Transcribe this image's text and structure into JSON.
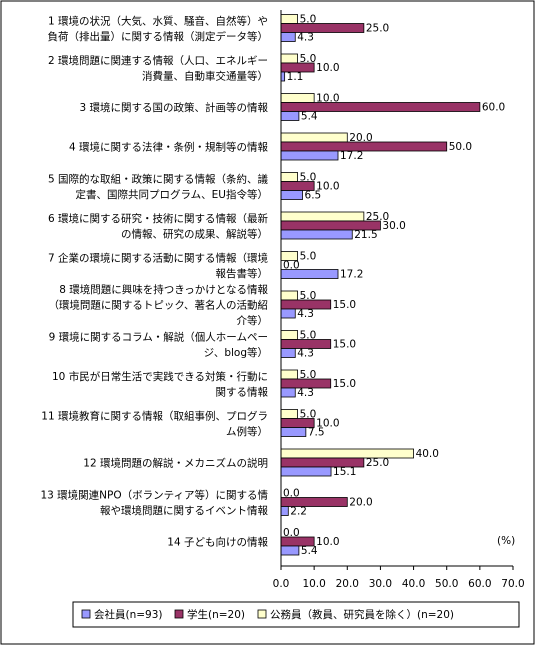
{
  "chart_data": {
    "type": "bar",
    "orientation": "horizontal",
    "unit_label": "(%)",
    "xlim": [
      0,
      70
    ],
    "xticks": [
      "0.0",
      "10.0",
      "20.0",
      "30.0",
      "40.0",
      "50.0",
      "60.0",
      "70.0"
    ],
    "grid": false,
    "legend_position": "bottom",
    "categories": [
      [
        "1 環境の状況（大気、水質、騒音、自然等）や",
        "負荷（排出量）に関する情報（測定データ等）"
      ],
      [
        "2 環境問題に関連する情報（人口、エネルギー",
        "消費量、自動車交通量等）"
      ],
      [
        "3 環境に関する国の政策、計画等の情報"
      ],
      [
        "4 環境に関する法律・条例・規制等の情報"
      ],
      [
        "5 国際的な取組・政策に関する情報（条約、議",
        "定書、国際共同プログラム、EU指令等）"
      ],
      [
        "6 環境に関する研究・技術に関する情報（最新",
        "の情報、研究の成果、解説等）"
      ],
      [
        "7 企業の環境に関する活動に関する情報（環境",
        "報告書等）"
      ],
      [
        "8 環境問題に興味を持つきっかけとなる情報",
        "（環境問題に関するトピック、著名人の活動紹",
        "介等）"
      ],
      [
        "9 環境に関するコラム・解説（個人ホームペー",
        "ジ、blog等）"
      ],
      [
        "10 市民が日常生活で実践できる対策・行動に",
        "関する情報"
      ],
      [
        "11 環境教育に関する情報（取組事例、プログラ",
        "ム例等）"
      ],
      [
        "12 環境問題の解説・メカニズムの説明"
      ],
      [
        "13 環境関連NPO（ボランティア等）に関する情",
        "報や環境問題に関するイベント情報"
      ],
      [
        "14 子ども向けの情報"
      ]
    ],
    "series": [
      {
        "name": "公務員（教員、研究員を除く）(n=20)",
        "color": "#ffffcc",
        "values": [
          5.0,
          5.0,
          10.0,
          20.0,
          5.0,
          25.0,
          5.0,
          5.0,
          5.0,
          5.0,
          5.0,
          40.0,
          0.0,
          0.0
        ],
        "labels": [
          "5.0",
          "5.0",
          "10.0",
          "20.0",
          "5.0",
          "25.0",
          "5.0",
          "5.0",
          "5.0",
          "5.0",
          "5.0",
          "40.0",
          "0.0",
          "0.0"
        ]
      },
      {
        "name": "学生(n=20)",
        "color": "#993366",
        "values": [
          25.0,
          10.0,
          60.0,
          50.0,
          10.0,
          30.0,
          0.0,
          15.0,
          15.0,
          15.0,
          10.0,
          25.0,
          20.0,
          10.0
        ],
        "labels": [
          "25.0",
          "10.0",
          "60.0",
          "50.0",
          "10.0",
          "30.0",
          "0.0",
          "15.0",
          "15.0",
          "15.0",
          "10.0",
          "25.0",
          "20.0",
          "10.0"
        ]
      },
      {
        "name": "会社員(n=93)",
        "color": "#9999ff",
        "values": [
          4.3,
          1.1,
          5.4,
          17.2,
          6.5,
          21.5,
          17.2,
          4.3,
          4.3,
          4.3,
          7.5,
          15.1,
          2.2,
          5.4
        ],
        "labels": [
          "4.3",
          "1.1",
          "5.4",
          "17.2",
          "6.5",
          "21.5",
          "17.2",
          "4.3",
          "4.3",
          "4.3",
          "7.5",
          "15.1",
          "2.2",
          "5.4"
        ]
      }
    ],
    "legend_order": [
      "会社員(n=93)",
      "学生(n=20)",
      "公務員（教員、研究員を除く）(n=20)"
    ]
  }
}
